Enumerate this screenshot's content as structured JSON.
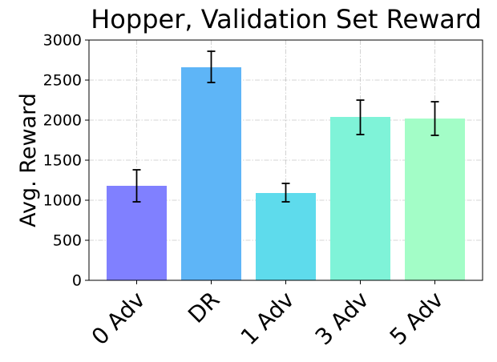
{
  "chart_data": {
    "type": "bar",
    "title": "Hopper, Validation Set Reward",
    "xlabel": "",
    "ylabel": "Avg. Reward",
    "categories": [
      "0 Adv",
      "DR",
      "1 Adv",
      "3 Adv",
      "5 Adv"
    ],
    "values": [
      1180,
      2660,
      1090,
      2040,
      2020
    ],
    "error_low": [
      980,
      2470,
      980,
      1820,
      1810
    ],
    "error_high": [
      1380,
      2860,
      1210,
      2250,
      2230
    ],
    "colors": [
      "#8080ff",
      "#5eb5f7",
      "#5edbec",
      "#7ff3d8",
      "#a3fdc7"
    ],
    "ylim": [
      0,
      3000
    ],
    "yticks": [
      0,
      500,
      1000,
      1500,
      2000,
      2500,
      3000
    ],
    "ytick_labels": [
      "0",
      "500",
      "1000",
      "1500",
      "2000",
      "2500",
      "3000"
    ],
    "grid": true
  }
}
